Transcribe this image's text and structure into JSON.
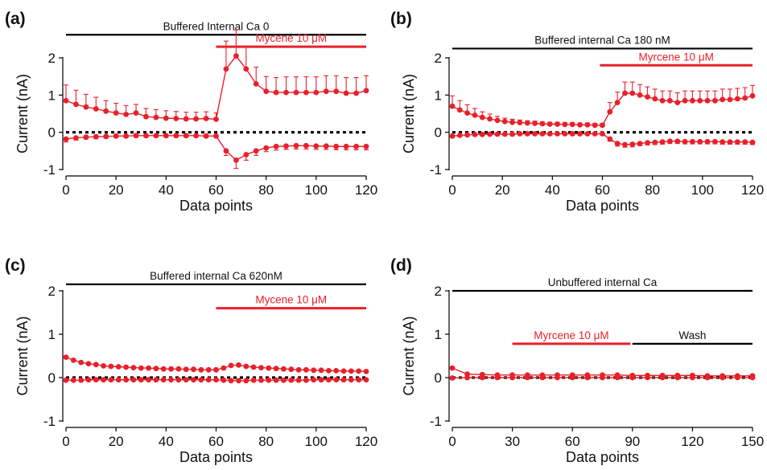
{
  "colors": {
    "series": "#e8202a",
    "zero_line": "#000000",
    "bar_black": "#000000",
    "bar_red": "#e8202a"
  },
  "chart_data": [
    {
      "panel_label": "(a)",
      "type": "line",
      "xlabel": "Data points",
      "ylabel": "Current (nA)",
      "xlim": [
        0,
        120
      ],
      "ylim": [
        -1,
        2
      ],
      "xticks": [
        0,
        20,
        40,
        60,
        80,
        100,
        120
      ],
      "yticks": [
        -1,
        0,
        1,
        2
      ],
      "condition_bars": [
        {
          "label": "Buffered Internal Ca 0",
          "x_start": 0,
          "x_end": 120,
          "y": 2.62,
          "color": "black",
          "label_at": "top"
        },
        {
          "label": "Mycene 10 μM",
          "x_start": 60,
          "x_end": 120,
          "y": 2.3,
          "color": "red",
          "label_at": "top"
        }
      ],
      "series": [
        {
          "x": [
            0,
            4,
            8,
            12,
            16,
            20,
            24,
            28,
            32,
            36,
            40,
            44,
            48,
            52,
            56,
            60,
            64,
            68,
            72,
            76,
            80,
            84,
            88,
            92,
            96,
            100,
            104,
            108,
            112,
            116,
            120
          ],
          "values": [
            0.85,
            0.75,
            0.68,
            0.63,
            0.57,
            0.52,
            0.48,
            0.52,
            0.42,
            0.4,
            0.38,
            0.37,
            0.36,
            0.36,
            0.37,
            0.35,
            1.7,
            2.05,
            1.7,
            1.3,
            1.1,
            1.07,
            1.07,
            1.07,
            1.07,
            1.07,
            1.1,
            1.1,
            1.05,
            1.05,
            1.12
          ],
          "errors": [
            0.42,
            0.38,
            0.34,
            0.31,
            0.28,
            0.26,
            0.24,
            0.23,
            0.22,
            0.21,
            0.2,
            0.19,
            0.18,
            0.18,
            0.18,
            0.17,
            0.75,
            0.7,
            0.6,
            0.45,
            0.4,
            0.4,
            0.42,
            0.42,
            0.42,
            0.42,
            0.42,
            0.42,
            0.42,
            0.42,
            0.4
          ]
        },
        {
          "x": [
            0,
            4,
            8,
            12,
            16,
            20,
            24,
            28,
            32,
            36,
            40,
            44,
            48,
            52,
            56,
            60,
            64,
            68,
            72,
            76,
            80,
            84,
            88,
            92,
            96,
            100,
            104,
            108,
            112,
            116,
            120
          ],
          "values": [
            -0.18,
            -0.15,
            -0.13,
            -0.12,
            -0.11,
            -0.1,
            -0.1,
            -0.09,
            -0.09,
            -0.09,
            -0.09,
            -0.09,
            -0.09,
            -0.09,
            -0.1,
            -0.1,
            -0.5,
            -0.75,
            -0.6,
            -0.5,
            -0.42,
            -0.38,
            -0.37,
            -0.36,
            -0.36,
            -0.37,
            -0.37,
            -0.38,
            -0.38,
            -0.38,
            -0.38
          ],
          "errors": [
            0.08,
            0.06,
            0.05,
            0.05,
            0.05,
            0.04,
            0.04,
            0.04,
            0.04,
            0.04,
            0.04,
            0.04,
            0.04,
            0.04,
            0.04,
            0.04,
            0.12,
            0.22,
            0.15,
            0.12,
            0.1,
            0.1,
            0.09,
            0.09,
            0.09,
            0.09,
            0.09,
            0.09,
            0.09,
            0.09,
            0.09
          ]
        }
      ]
    },
    {
      "panel_label": "(b)",
      "type": "line",
      "xlabel": "Data points",
      "ylabel": "Current (nA)",
      "xlim": [
        0,
        120
      ],
      "ylim": [
        -1,
        2
      ],
      "xticks": [
        0,
        20,
        40,
        60,
        80,
        100,
        120
      ],
      "yticks": [
        -1,
        0,
        1,
        2
      ],
      "condition_bars": [
        {
          "label": "Buffered internal Ca 180 nM",
          "x_start": 0,
          "x_end": 120,
          "y": 2.25,
          "color": "black",
          "label_at": "top"
        },
        {
          "label": "Myrcene 10 μM",
          "x_start": 59,
          "x_end": 120,
          "y": 1.8,
          "color": "red",
          "label_at": "top"
        }
      ],
      "series": [
        {
          "x": [
            0,
            3,
            6,
            9,
            12,
            15,
            18,
            21,
            24,
            27,
            30,
            33,
            36,
            39,
            42,
            45,
            48,
            51,
            54,
            57,
            60,
            63,
            66,
            69,
            72,
            75,
            78,
            81,
            84,
            87,
            90,
            93,
            96,
            99,
            102,
            105,
            108,
            111,
            114,
            117,
            120
          ],
          "values": [
            0.7,
            0.6,
            0.52,
            0.46,
            0.4,
            0.36,
            0.32,
            0.29,
            0.27,
            0.26,
            0.25,
            0.24,
            0.23,
            0.22,
            0.22,
            0.21,
            0.21,
            0.2,
            0.2,
            0.19,
            0.19,
            0.55,
            0.8,
            1.05,
            1.05,
            1.0,
            0.95,
            0.9,
            0.85,
            0.85,
            0.8,
            0.85,
            0.85,
            0.85,
            0.85,
            0.85,
            0.88,
            0.88,
            0.9,
            0.92,
            0.98
          ],
          "errors": [
            0.28,
            0.25,
            0.22,
            0.18,
            0.15,
            0.13,
            0.11,
            0.09,
            0.08,
            0.07,
            0.06,
            0.06,
            0.05,
            0.05,
            0.05,
            0.05,
            0.05,
            0.05,
            0.05,
            0.05,
            0.05,
            0.25,
            0.28,
            0.3,
            0.3,
            0.28,
            0.27,
            0.26,
            0.26,
            0.26,
            0.26,
            0.26,
            0.26,
            0.26,
            0.26,
            0.26,
            0.28,
            0.28,
            0.28,
            0.28,
            0.28
          ]
        },
        {
          "x": [
            0,
            3,
            6,
            9,
            12,
            15,
            18,
            21,
            24,
            27,
            30,
            33,
            36,
            39,
            42,
            45,
            48,
            51,
            54,
            57,
            60,
            63,
            66,
            69,
            72,
            75,
            78,
            81,
            84,
            87,
            90,
            93,
            96,
            99,
            102,
            105,
            108,
            111,
            114,
            117,
            120
          ],
          "values": [
            -0.1,
            -0.08,
            -0.07,
            -0.06,
            -0.06,
            -0.05,
            -0.05,
            -0.05,
            -0.05,
            -0.04,
            -0.04,
            -0.04,
            -0.04,
            -0.04,
            -0.04,
            -0.04,
            -0.04,
            -0.04,
            -0.04,
            -0.04,
            -0.04,
            -0.18,
            -0.3,
            -0.33,
            -0.32,
            -0.3,
            -0.28,
            -0.27,
            -0.26,
            -0.24,
            -0.24,
            -0.25,
            -0.25,
            -0.25,
            -0.25,
            -0.25,
            -0.26,
            -0.26,
            -0.26,
            -0.26,
            -0.27
          ],
          "errors": [
            0.04,
            0.03,
            0.03,
            0.03,
            0.03,
            0.03,
            0.03,
            0.03,
            0.03,
            0.03,
            0.03,
            0.03,
            0.03,
            0.03,
            0.03,
            0.03,
            0.03,
            0.03,
            0.03,
            0.03,
            0.03,
            0.06,
            0.07,
            0.07,
            0.07,
            0.06,
            0.06,
            0.06,
            0.06,
            0.06,
            0.06,
            0.06,
            0.06,
            0.06,
            0.06,
            0.06,
            0.06,
            0.06,
            0.06,
            0.06,
            0.06
          ]
        }
      ]
    },
    {
      "panel_label": "(c)",
      "type": "line",
      "xlabel": "Data points",
      "ylabel": "Current (nA)",
      "xlim": [
        0,
        120
      ],
      "ylim": [
        -1,
        2
      ],
      "xticks": [
        0,
        20,
        40,
        60,
        80,
        100,
        120
      ],
      "yticks": [
        -1,
        0,
        1,
        2
      ],
      "condition_bars": [
        {
          "label": "Buffered internal Ca 620nM",
          "x_start": 0,
          "x_end": 120,
          "y": 2.15,
          "color": "black",
          "label_at": "top"
        },
        {
          "label": "Mycene 10 μM",
          "x_start": 60,
          "x_end": 120,
          "y": 1.6,
          "color": "red",
          "label_at": "top"
        }
      ],
      "series": [
        {
          "x": [
            0,
            3,
            6,
            9,
            12,
            15,
            18,
            21,
            24,
            27,
            30,
            33,
            36,
            39,
            42,
            45,
            48,
            51,
            54,
            57,
            60,
            63,
            66,
            69,
            72,
            75,
            78,
            81,
            84,
            87,
            90,
            93,
            96,
            99,
            102,
            105,
            108,
            111,
            114,
            117,
            120
          ],
          "values": [
            0.47,
            0.4,
            0.35,
            0.32,
            0.3,
            0.27,
            0.26,
            0.25,
            0.24,
            0.23,
            0.22,
            0.22,
            0.21,
            0.2,
            0.2,
            0.2,
            0.19,
            0.19,
            0.18,
            0.18,
            0.18,
            0.22,
            0.28,
            0.29,
            0.26,
            0.24,
            0.23,
            0.22,
            0.21,
            0.2,
            0.19,
            0.18,
            0.18,
            0.17,
            0.17,
            0.16,
            0.16,
            0.15,
            0.15,
            0.15,
            0.14
          ],
          "errors": [
            0.03,
            0.03,
            0.02,
            0.02,
            0.02,
            0.02,
            0.02,
            0.02,
            0.02,
            0.02,
            0.02,
            0.02,
            0.02,
            0.02,
            0.02,
            0.02,
            0.02,
            0.02,
            0.02,
            0.02,
            0.02,
            0.02,
            0.02,
            0.02,
            0.02,
            0.02,
            0.02,
            0.02,
            0.02,
            0.02,
            0.02,
            0.02,
            0.02,
            0.02,
            0.02,
            0.02,
            0.02,
            0.02,
            0.02,
            0.02,
            0.02
          ]
        },
        {
          "x": [
            0,
            3,
            6,
            9,
            12,
            15,
            18,
            21,
            24,
            27,
            30,
            33,
            36,
            39,
            42,
            45,
            48,
            51,
            54,
            57,
            60,
            63,
            66,
            69,
            72,
            75,
            78,
            81,
            84,
            87,
            90,
            93,
            96,
            99,
            102,
            105,
            108,
            111,
            114,
            117,
            120
          ],
          "values": [
            -0.06,
            -0.06,
            -0.06,
            -0.05,
            -0.05,
            -0.05,
            -0.05,
            -0.05,
            -0.05,
            -0.05,
            -0.05,
            -0.05,
            -0.05,
            -0.05,
            -0.05,
            -0.05,
            -0.05,
            -0.05,
            -0.05,
            -0.05,
            -0.05,
            -0.06,
            -0.07,
            -0.07,
            -0.07,
            -0.06,
            -0.06,
            -0.06,
            -0.06,
            -0.06,
            -0.06,
            -0.06,
            -0.06,
            -0.05,
            -0.05,
            -0.05,
            -0.05,
            -0.05,
            -0.05,
            -0.05,
            -0.05
          ],
          "errors": [
            0.02,
            0.02,
            0.02,
            0.02,
            0.02,
            0.02,
            0.02,
            0.02,
            0.02,
            0.02,
            0.02,
            0.02,
            0.02,
            0.02,
            0.02,
            0.02,
            0.02,
            0.02,
            0.02,
            0.02,
            0.02,
            0.02,
            0.02,
            0.02,
            0.02,
            0.02,
            0.02,
            0.02,
            0.02,
            0.02,
            0.02,
            0.02,
            0.02,
            0.02,
            0.02,
            0.02,
            0.02,
            0.02,
            0.02,
            0.02,
            0.02
          ]
        }
      ]
    },
    {
      "panel_label": "(d)",
      "type": "line",
      "xlabel": "Data points",
      "ylabel": "Current (nA)",
      "xlim": [
        0,
        150
      ],
      "ylim": [
        -1,
        2
      ],
      "xticks": [
        0,
        30,
        60,
        90,
        120,
        150
      ],
      "yticks": [
        -1,
        0,
        1,
        2
      ],
      "condition_bars": [
        {
          "label": "Unbuffered internal Ca",
          "x_start": 0,
          "x_end": 150,
          "y": 2.0,
          "color": "black",
          "label_at": "top"
        },
        {
          "label": "Myrcene 10 μM",
          "x_start": 30,
          "x_end": 89,
          "y": 0.78,
          "color": "red",
          "label_at": "top"
        },
        {
          "label": "Wash",
          "x_start": 90,
          "x_end": 150,
          "y": 0.78,
          "color": "black",
          "label_at": "top"
        }
      ],
      "series": [
        {
          "x": [
            0,
            7.5,
            15,
            22.5,
            30,
            37.5,
            45,
            52.5,
            60,
            67.5,
            75,
            82.5,
            90,
            97.5,
            105,
            112.5,
            120,
            127.5,
            135,
            142.5,
            150
          ],
          "values": [
            0.22,
            0.08,
            0.07,
            0.06,
            0.06,
            0.06,
            0.06,
            0.06,
            0.06,
            0.06,
            0.06,
            0.06,
            0.05,
            0.05,
            0.05,
            0.05,
            0.05,
            0.04,
            0.04,
            0.04,
            0.04
          ],
          "errors": [
            0.02,
            0.01,
            0.01,
            0.01,
            0.01,
            0.01,
            0.01,
            0.01,
            0.01,
            0.01,
            0.01,
            0.01,
            0.01,
            0.01,
            0.01,
            0.01,
            0.01,
            0.01,
            0.01,
            0.01,
            0.01
          ]
        },
        {
          "x": [
            0,
            7.5,
            15,
            22.5,
            30,
            37.5,
            45,
            52.5,
            60,
            67.5,
            75,
            82.5,
            90,
            97.5,
            105,
            112.5,
            120,
            127.5,
            135,
            142.5,
            150
          ],
          "values": [
            -0.01,
            0.0,
            0.0,
            0.0,
            0.0,
            0.0,
            0.0,
            0.0,
            0.0,
            0.0,
            0.0,
            0.0,
            0.0,
            0.0,
            0.0,
            0.0,
            0.0,
            0.0,
            0.0,
            0.0,
            0.0
          ],
          "errors": [
            0.01,
            0.01,
            0.01,
            0.01,
            0.01,
            0.01,
            0.01,
            0.01,
            0.01,
            0.01,
            0.01,
            0.01,
            0.01,
            0.01,
            0.01,
            0.01,
            0.01,
            0.01,
            0.01,
            0.01,
            0.01
          ]
        }
      ]
    }
  ]
}
